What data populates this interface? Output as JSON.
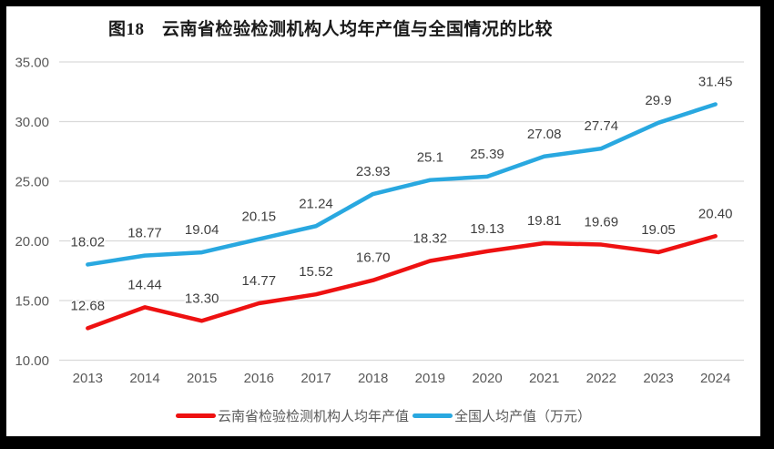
{
  "frame": {
    "border_color": "#000000",
    "surface_color": "#ffffff"
  },
  "chart_data": {
    "type": "line",
    "title": "图18　云南省检验检测机构人均年产值与全国情况的比较",
    "categories": [
      "2013",
      "2014",
      "2015",
      "2016",
      "2017",
      "2018",
      "2019",
      "2020",
      "2021",
      "2022",
      "2023",
      "2024"
    ],
    "series": [
      {
        "id": "yunnan",
        "name": "云南省检验检测机构人均年产值",
        "color": "#ee1111",
        "values": [
          12.68,
          14.44,
          13.3,
          14.77,
          15.52,
          16.7,
          18.32,
          19.13,
          19.81,
          19.69,
          19.05,
          20.4
        ],
        "labels": [
          "12.68",
          "14.44",
          "13.30",
          "14.77",
          "15.52",
          "16.70",
          "18.32",
          "19.13",
          "19.81",
          "19.69",
          "19.05",
          "20.40"
        ]
      },
      {
        "id": "national",
        "name": "全国人均产值（万元）",
        "color": "#29a8e0",
        "values": [
          18.02,
          18.77,
          19.04,
          20.15,
          21.24,
          23.93,
          25.1,
          25.39,
          27.08,
          27.74,
          29.9,
          31.45
        ],
        "labels": [
          "18.02",
          "18.77",
          "19.04",
          "20.15",
          "21.24",
          "23.93",
          "25.1",
          "25.39",
          "27.08",
          "27.74",
          "29.9",
          "31.45"
        ]
      }
    ],
    "y_axis": {
      "min": 10,
      "max": 35,
      "step": 5,
      "tick_labels": [
        "10.00",
        "15.00",
        "20.00",
        "25.00",
        "30.00",
        "35.00"
      ]
    },
    "x_axis": {
      "label": ""
    },
    "grid": "horizontal",
    "legend_position": "bottom",
    "colors": {
      "grid": "#d9d9d9",
      "axis_text": "#595959",
      "data_label": "#3f3f3f",
      "title_text": "#1a1a1a"
    }
  }
}
